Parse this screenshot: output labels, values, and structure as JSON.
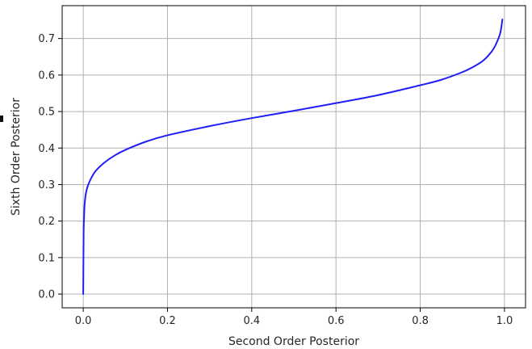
{
  "chart_data": {
    "type": "line",
    "title": "",
    "xlabel": "Second Order Posterior",
    "ylabel": "Sixth Order Posterior",
    "xlim": [
      -0.05,
      1.05
    ],
    "ylim": [
      -0.0375,
      0.79
    ],
    "x_ticks": [
      "0.0",
      "0.2",
      "0.4",
      "0.6",
      "0.8",
      "1.0"
    ],
    "y_ticks": [
      "0.0",
      "0.1",
      "0.2",
      "0.3",
      "0.4",
      "0.5",
      "0.6",
      "0.7"
    ],
    "grid": true,
    "legend": "none",
    "series": [
      {
        "color": "#1f1ff5",
        "x": [
          0.0,
          0.001,
          0.002,
          0.003,
          0.005,
          0.008,
          0.012,
          0.02,
          0.03,
          0.05,
          0.075,
          0.1,
          0.15,
          0.2,
          0.3,
          0.4,
          0.5,
          0.6,
          0.7,
          0.8,
          0.85,
          0.9,
          0.93,
          0.95,
          0.97,
          0.98,
          0.99,
          0.995
        ],
        "y": [
          0.0,
          0.17,
          0.21,
          0.24,
          0.265,
          0.285,
          0.3,
          0.32,
          0.338,
          0.36,
          0.38,
          0.395,
          0.418,
          0.435,
          0.46,
          0.482,
          0.502,
          0.523,
          0.545,
          0.572,
          0.587,
          0.608,
          0.625,
          0.64,
          0.665,
          0.685,
          0.715,
          0.752
        ]
      }
    ]
  }
}
